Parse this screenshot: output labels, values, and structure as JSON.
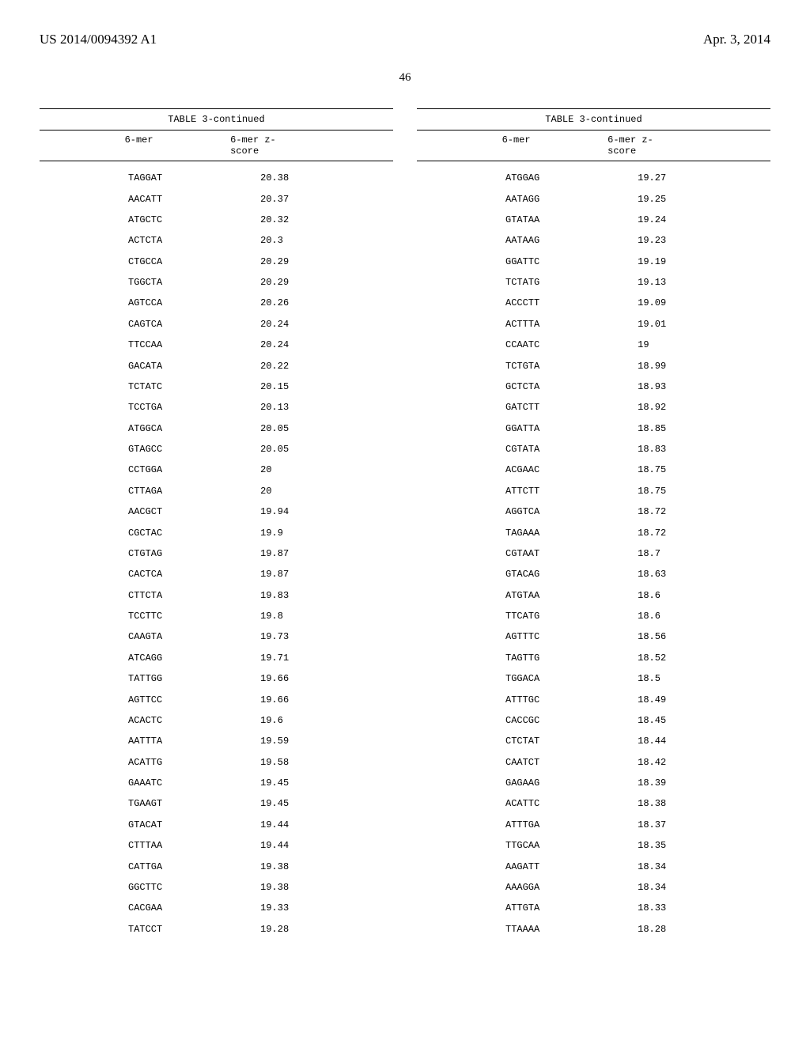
{
  "header": {
    "left": "US 2014/0094392 A1",
    "right": "Apr. 3, 2014"
  },
  "page_number": "46",
  "table": {
    "title": "TABLE 3-continued",
    "column_headers": {
      "mer": "6-mer",
      "score_line1": "6-mer z-",
      "score_line2": "score"
    },
    "left_rows": [
      {
        "mer": "TAGGAT",
        "score": "20.38"
      },
      {
        "mer": "AACATT",
        "score": "20.37"
      },
      {
        "mer": "ATGCTC",
        "score": "20.32"
      },
      {
        "mer": "ACTCTA",
        "score": "20.3"
      },
      {
        "mer": "CTGCCA",
        "score": "20.29"
      },
      {
        "mer": "TGGCTA",
        "score": "20.29"
      },
      {
        "mer": "AGTCCA",
        "score": "20.26"
      },
      {
        "mer": "CAGTCA",
        "score": "20.24"
      },
      {
        "mer": "TTCCAA",
        "score": "20.24"
      },
      {
        "mer": "GACATA",
        "score": "20.22"
      },
      {
        "mer": "TCTATC",
        "score": "20.15"
      },
      {
        "mer": "TCCTGA",
        "score": "20.13"
      },
      {
        "mer": "ATGGCA",
        "score": "20.05"
      },
      {
        "mer": "GTAGCC",
        "score": "20.05"
      },
      {
        "mer": "CCTGGA",
        "score": "20"
      },
      {
        "mer": "CTTAGA",
        "score": "20"
      },
      {
        "mer": "AACGCT",
        "score": "19.94"
      },
      {
        "mer": "CGCTAC",
        "score": "19.9"
      },
      {
        "mer": "CTGTAG",
        "score": "19.87"
      },
      {
        "mer": "CACTCA",
        "score": "19.87"
      },
      {
        "mer": "CTTCTA",
        "score": "19.83"
      },
      {
        "mer": "TCCTTC",
        "score": "19.8"
      },
      {
        "mer": "CAAGTA",
        "score": "19.73"
      },
      {
        "mer": "ATCAGG",
        "score": "19.71"
      },
      {
        "mer": "TATTGG",
        "score": "19.66"
      },
      {
        "mer": "AGTTCC",
        "score": "19.66"
      },
      {
        "mer": "ACACTC",
        "score": "19.6"
      },
      {
        "mer": "AATTTA",
        "score": "19.59"
      },
      {
        "mer": "ACATTG",
        "score": "19.58"
      },
      {
        "mer": "GAAATC",
        "score": "19.45"
      },
      {
        "mer": "TGAAGT",
        "score": "19.45"
      },
      {
        "mer": "GTACAT",
        "score": "19.44"
      },
      {
        "mer": "CTTTAA",
        "score": "19.44"
      },
      {
        "mer": "CATTGA",
        "score": "19.38"
      },
      {
        "mer": "GGCTTC",
        "score": "19.38"
      },
      {
        "mer": "CACGAA",
        "score": "19.33"
      },
      {
        "mer": "TATCCT",
        "score": "19.28"
      }
    ],
    "right_rows": [
      {
        "mer": "ATGGAG",
        "score": "19.27"
      },
      {
        "mer": "AATAGG",
        "score": "19.25"
      },
      {
        "mer": "GTATAA",
        "score": "19.24"
      },
      {
        "mer": "AATAAG",
        "score": "19.23"
      },
      {
        "mer": "GGATTC",
        "score": "19.19"
      },
      {
        "mer": "TCTATG",
        "score": "19.13"
      },
      {
        "mer": "ACCCTT",
        "score": "19.09"
      },
      {
        "mer": "ACTTTA",
        "score": "19.01"
      },
      {
        "mer": "CCAATC",
        "score": "19"
      },
      {
        "mer": "TCTGTA",
        "score": "18.99"
      },
      {
        "mer": "GCTCTA",
        "score": "18.93"
      },
      {
        "mer": "GATCTT",
        "score": "18.92"
      },
      {
        "mer": "GGATTA",
        "score": "18.85"
      },
      {
        "mer": "CGTATA",
        "score": "18.83"
      },
      {
        "mer": "ACGAAC",
        "score": "18.75"
      },
      {
        "mer": "ATTCTT",
        "score": "18.75"
      },
      {
        "mer": "AGGTCA",
        "score": "18.72"
      },
      {
        "mer": "TAGAAA",
        "score": "18.72"
      },
      {
        "mer": "CGTAAT",
        "score": "18.7"
      },
      {
        "mer": "GTACAG",
        "score": "18.63"
      },
      {
        "mer": "ATGTAA",
        "score": "18.6"
      },
      {
        "mer": "TTCATG",
        "score": "18.6"
      },
      {
        "mer": "AGTTTC",
        "score": "18.56"
      },
      {
        "mer": "TAGTTG",
        "score": "18.52"
      },
      {
        "mer": "TGGACA",
        "score": "18.5"
      },
      {
        "mer": "ATTTGC",
        "score": "18.49"
      },
      {
        "mer": "CACCGC",
        "score": "18.45"
      },
      {
        "mer": "CTCTAT",
        "score": "18.44"
      },
      {
        "mer": "CAATCT",
        "score": "18.42"
      },
      {
        "mer": "GAGAAG",
        "score": "18.39"
      },
      {
        "mer": "ACATTC",
        "score": "18.38"
      },
      {
        "mer": "ATTTGA",
        "score": "18.37"
      },
      {
        "mer": "TTGCAA",
        "score": "18.35"
      },
      {
        "mer": "AAGATT",
        "score": "18.34"
      },
      {
        "mer": "AAAGGA",
        "score": "18.34"
      },
      {
        "mer": "ATTGTA",
        "score": "18.33"
      },
      {
        "mer": "TTAAAA",
        "score": "18.28"
      }
    ]
  }
}
